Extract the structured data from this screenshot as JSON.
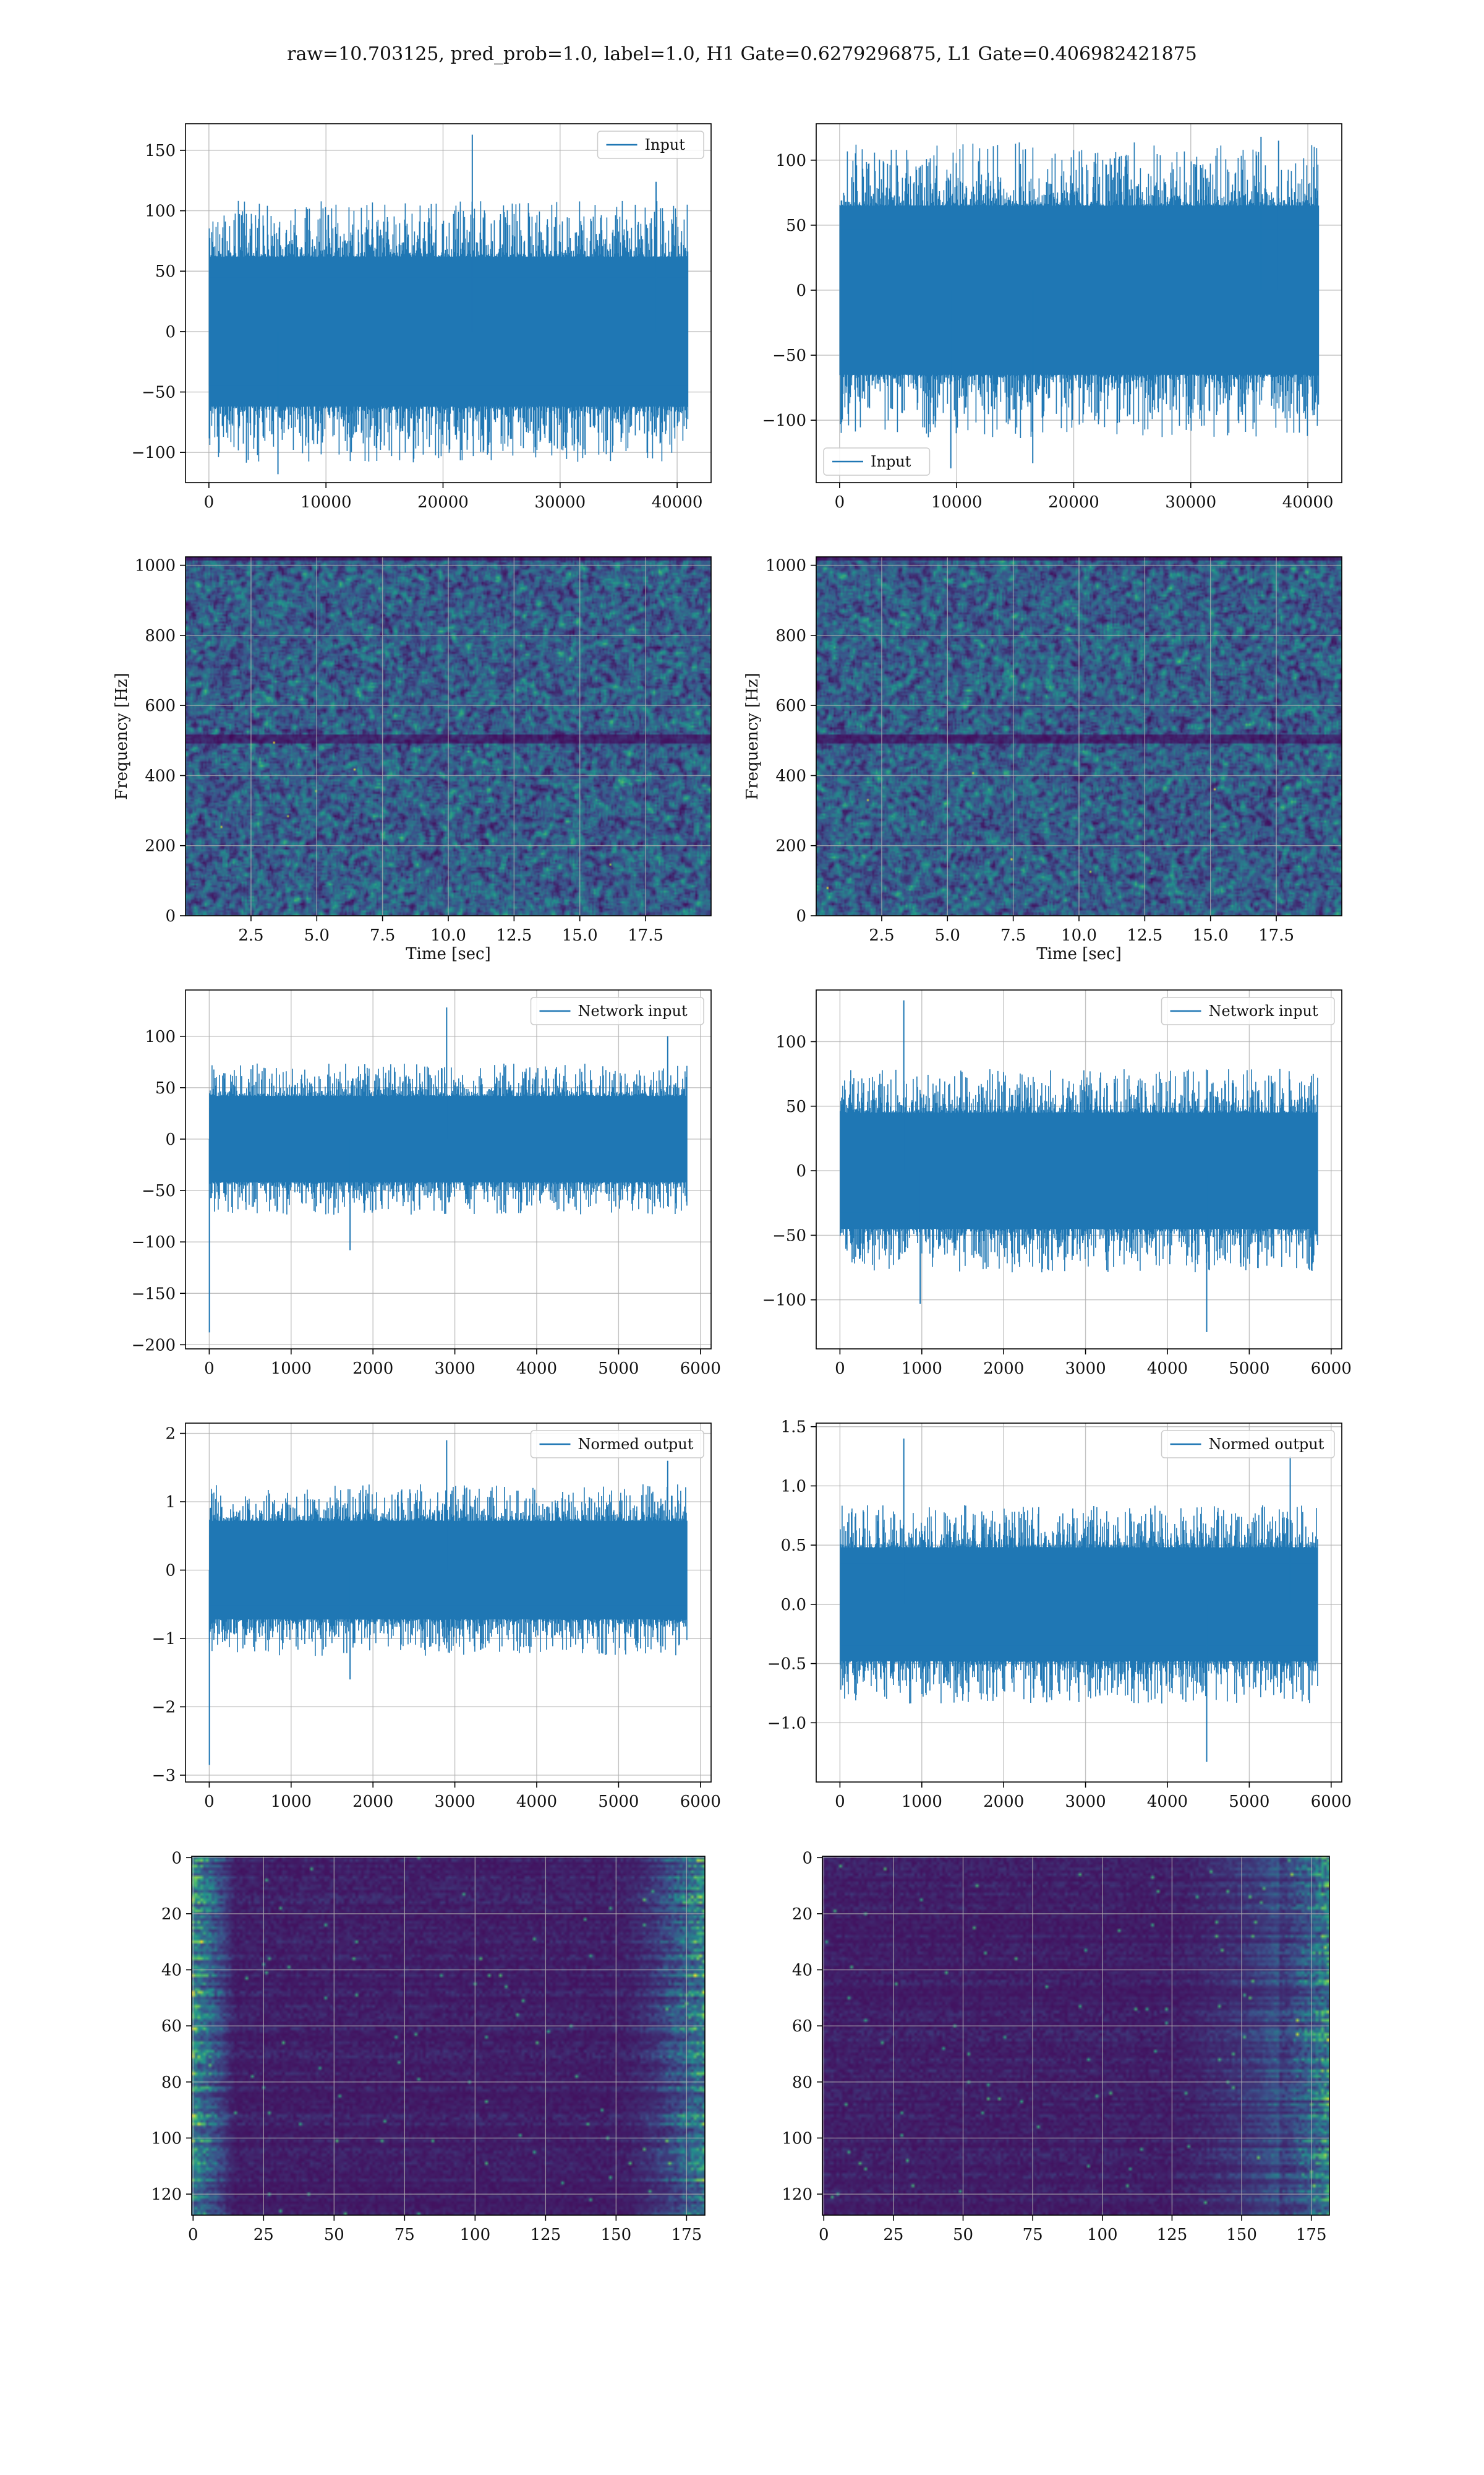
{
  "figure": {
    "title": "raw=10.703125, pred_prob=1.0, label=1.0, H1 Gate=0.6279296875, L1 Gate=0.406982421875"
  },
  "colors": {
    "line": "#1f77b4",
    "grid": "#b0b0b0",
    "axes": "#000000",
    "viridis_low": "#440154",
    "viridis_mid": "#21918c",
    "viridis_high": "#fde725"
  },
  "chart_data": [
    {
      "id": "p0",
      "type": "line",
      "grid": true,
      "series": [
        {
          "name": "Input"
        }
      ],
      "legend": "upper right",
      "xlim": [
        -2000,
        42900
      ],
      "ylim": [
        -125,
        172
      ],
      "xticks": [
        0,
        10000,
        20000,
        30000,
        40000
      ],
      "xticklabels": [
        "0",
        "10000",
        "20000",
        "30000",
        "40000"
      ],
      "yticks": [
        -100,
        -50,
        0,
        50,
        100,
        150
      ],
      "yticklabels": [
        "−100",
        "−50",
        "0",
        "50",
        "100",
        "150"
      ],
      "signal": {
        "n": 40960,
        "mean": 0,
        "band": [
          -62,
          62
        ],
        "min": -118,
        "max": 163,
        "spikes": [
          [
            22500,
            163
          ],
          [
            5900,
            -118
          ],
          [
            38200,
            124
          ]
        ]
      }
    },
    {
      "id": "p1",
      "type": "line",
      "grid": true,
      "series": [
        {
          "name": "Input"
        }
      ],
      "legend": "lower left",
      "xlim": [
        -2000,
        42900
      ],
      "ylim": [
        -148,
        128
      ],
      "xticks": [
        0,
        10000,
        20000,
        30000,
        40000
      ],
      "xticklabels": [
        "0",
        "10000",
        "20000",
        "30000",
        "40000"
      ],
      "yticks": [
        -100,
        -50,
        0,
        50,
        100
      ],
      "yticklabels": [
        "−100",
        "−50",
        "0",
        "50",
        "100"
      ],
      "signal": {
        "n": 40960,
        "mean": 0,
        "band": [
          -65,
          65
        ],
        "min": -137,
        "max": 118,
        "spikes": [
          [
            9500,
            -137
          ],
          [
            16500,
            -133
          ],
          [
            36000,
            118
          ],
          [
            37500,
            115
          ]
        ]
      }
    },
    {
      "id": "p2",
      "type": "heatmap",
      "grid": true,
      "xlabel": "Time [sec]",
      "ylabel": "Frequency [Hz]",
      "xlim": [
        0.01,
        19.99
      ],
      "ylim": [
        0,
        1024
      ],
      "xticks": [
        2.5,
        5.0,
        7.5,
        10.0,
        12.5,
        15.0,
        17.5
      ],
      "xticklabels": [
        "2.5",
        "5.0",
        "7.5",
        "10.0",
        "12.5",
        "15.0",
        "17.5"
      ],
      "yticks": [
        0,
        200,
        400,
        600,
        800,
        1000
      ],
      "yticklabels": [
        "0",
        "200",
        "400",
        "600",
        "800",
        "1000"
      ],
      "texture": "spectrogram",
      "seed": 11
    },
    {
      "id": "p3",
      "type": "heatmap",
      "grid": true,
      "xlabel": "Time [sec]",
      "ylabel": "Frequency [Hz]",
      "xlim": [
        0.01,
        19.99
      ],
      "ylim": [
        0,
        1024
      ],
      "xticks": [
        2.5,
        5.0,
        7.5,
        10.0,
        12.5,
        15.0,
        17.5
      ],
      "xticklabels": [
        "2.5",
        "5.0",
        "7.5",
        "10.0",
        "12.5",
        "15.0",
        "17.5"
      ],
      "yticks": [
        0,
        200,
        400,
        600,
        800,
        1000
      ],
      "yticklabels": [
        "0",
        "200",
        "400",
        "600",
        "800",
        "1000"
      ],
      "texture": "spectrogram",
      "seed": 23
    },
    {
      "id": "p4",
      "type": "line",
      "grid": true,
      "series": [
        {
          "name": "Network input"
        }
      ],
      "legend": "upper right",
      "xlim": [
        -290,
        6130
      ],
      "ylim": [
        -204,
        145
      ],
      "xticks": [
        0,
        1000,
        2000,
        3000,
        4000,
        5000,
        6000
      ],
      "xticklabels": [
        "0",
        "1000",
        "2000",
        "3000",
        "4000",
        "5000",
        "6000"
      ],
      "yticks": [
        -200,
        -150,
        -100,
        -50,
        0,
        50,
        100
      ],
      "yticklabels": [
        "−200",
        "−150",
        "−100",
        "−50",
        "0",
        "50",
        "100"
      ],
      "signal": {
        "n": 5840,
        "mean": 0,
        "band": [
          -42,
          42
        ],
        "min": -188,
        "max": 128,
        "spikes": [
          [
            2,
            -188
          ],
          [
            2900,
            128
          ],
          [
            1720,
            -108
          ],
          [
            5600,
            100
          ]
        ]
      }
    },
    {
      "id": "p5",
      "type": "line",
      "grid": true,
      "series": [
        {
          "name": "Network input"
        }
      ],
      "legend": "upper right",
      "xlim": [
        -290,
        6130
      ],
      "ylim": [
        -138,
        140
      ],
      "xticks": [
        0,
        1000,
        2000,
        3000,
        4000,
        5000,
        6000
      ],
      "xticklabels": [
        "0",
        "1000",
        "2000",
        "3000",
        "4000",
        "5000",
        "6000"
      ],
      "yticks": [
        -100,
        -50,
        0,
        50,
        100
      ],
      "yticklabels": [
        "−100",
        "−50",
        "0",
        "50",
        "100"
      ],
      "signal": {
        "n": 5840,
        "mean": 0,
        "band": [
          -45,
          45
        ],
        "min": -125,
        "max": 132,
        "spikes": [
          [
            780,
            132
          ],
          [
            4480,
            -125
          ],
          [
            980,
            -103
          ]
        ]
      }
    },
    {
      "id": "p6",
      "type": "line",
      "grid": true,
      "series": [
        {
          "name": "Normed output"
        }
      ],
      "legend": "upper right",
      "xlim": [
        -290,
        6130
      ],
      "ylim": [
        -3.1,
        2.15
      ],
      "xticks": [
        0,
        1000,
        2000,
        3000,
        4000,
        5000,
        6000
      ],
      "xticklabels": [
        "0",
        "1000",
        "2000",
        "3000",
        "4000",
        "5000",
        "6000"
      ],
      "yticks": [
        -3,
        -2,
        -1,
        0,
        1,
        2
      ],
      "yticklabels": [
        "−3",
        "−2",
        "−1",
        "0",
        "1",
        "2"
      ],
      "signal": {
        "n": 5840,
        "mean": 0,
        "band": [
          -0.72,
          0.72
        ],
        "min": -2.85,
        "max": 1.9,
        "spikes": [
          [
            2,
            -2.85
          ],
          [
            2900,
            1.9
          ],
          [
            1720,
            -1.6
          ],
          [
            5600,
            1.6
          ]
        ]
      }
    },
    {
      "id": "p7",
      "type": "line",
      "grid": true,
      "series": [
        {
          "name": "Normed output"
        }
      ],
      "legend": "upper right",
      "xlim": [
        -290,
        6130
      ],
      "ylim": [
        -1.5,
        1.53
      ],
      "xticks": [
        0,
        1000,
        2000,
        3000,
        4000,
        5000,
        6000
      ],
      "xticklabels": [
        "0",
        "1000",
        "2000",
        "3000",
        "4000",
        "5000",
        "6000"
      ],
      "yticks": [
        -1.0,
        -0.5,
        0.0,
        0.5,
        1.0,
        1.5
      ],
      "yticklabels": [
        "−1.0",
        "−0.5",
        "0.0",
        "0.5",
        "1.0",
        "1.5"
      ],
      "signal": {
        "n": 5840,
        "mean": 0,
        "band": [
          -0.48,
          0.48
        ],
        "min": -1.33,
        "max": 1.4,
        "spikes": [
          [
            780,
            1.4
          ],
          [
            4480,
            -1.33
          ],
          [
            5500,
            1.25
          ]
        ]
      }
    },
    {
      "id": "p8",
      "type": "heatmap",
      "grid": true,
      "xlim": [
        -0.5,
        181.5
      ],
      "ylim": [
        127.5,
        -0.5
      ],
      "xticks": [
        0,
        25,
        50,
        75,
        100,
        125,
        150,
        175
      ],
      "xticklabels": [
        "0",
        "25",
        "50",
        "75",
        "100",
        "125",
        "150",
        "175"
      ],
      "yticks": [
        0,
        20,
        40,
        60,
        80,
        100,
        120
      ],
      "yticklabels": [
        "0",
        "20",
        "40",
        "60",
        "80",
        "100",
        "120"
      ],
      "texture": "activation",
      "seed": 37,
      "hot_left": 0.75,
      "hot_right": 1.0
    },
    {
      "id": "p9",
      "type": "heatmap",
      "grid": true,
      "xlim": [
        -0.5,
        181.5
      ],
      "ylim": [
        127.5,
        -0.5
      ],
      "xticks": [
        0,
        25,
        50,
        75,
        100,
        125,
        150,
        175
      ],
      "xticklabels": [
        "0",
        "25",
        "50",
        "75",
        "100",
        "125",
        "150",
        "175"
      ],
      "yticks": [
        0,
        20,
        40,
        60,
        80,
        100,
        120
      ],
      "yticklabels": [
        "0",
        "20",
        "40",
        "60",
        "80",
        "100",
        "120"
      ],
      "texture": "activation",
      "seed": 41,
      "hot_left": 0.25,
      "hot_right": 1.0
    }
  ]
}
